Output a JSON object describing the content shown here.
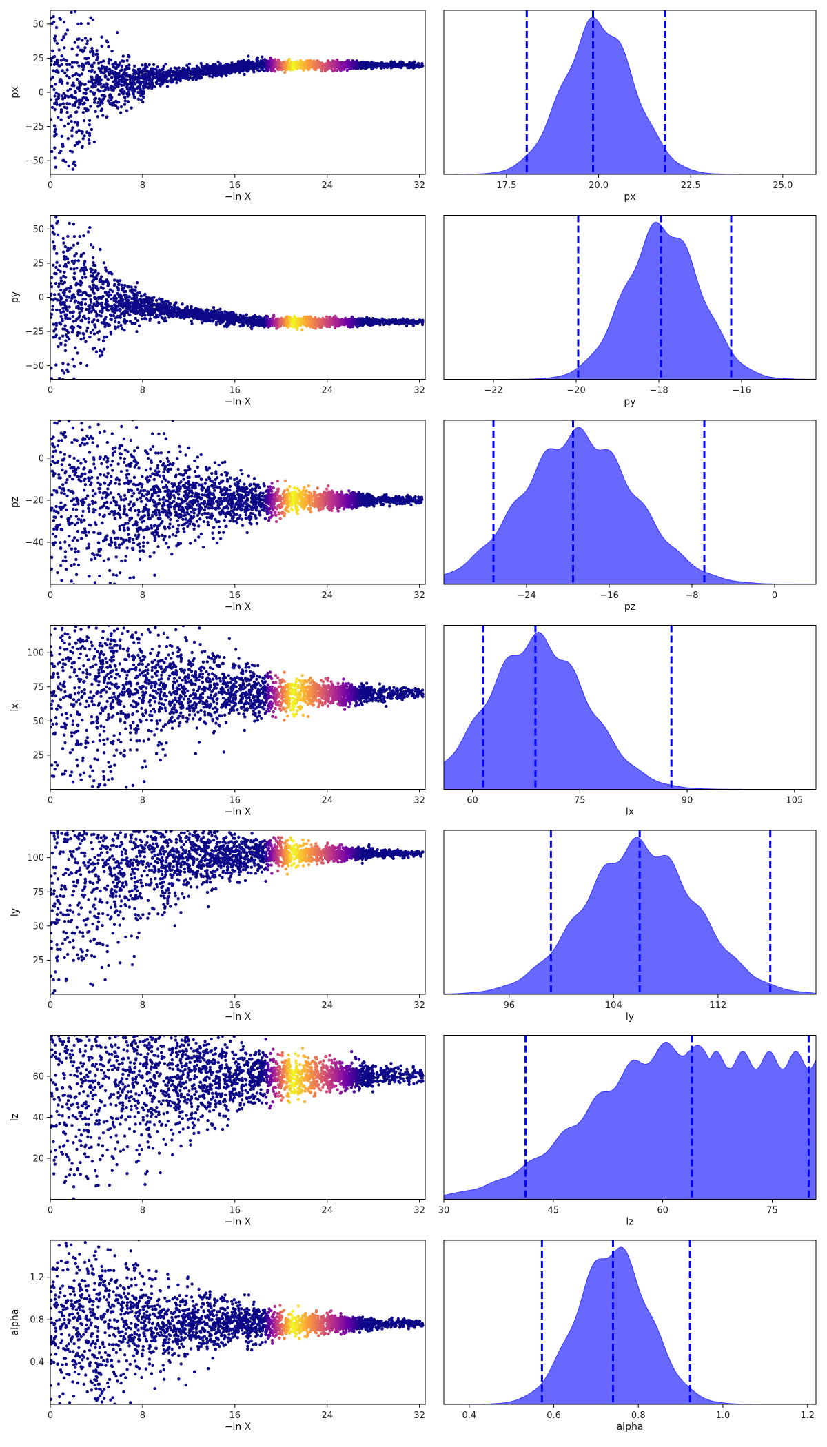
{
  "chart_data": {
    "type": "trace-plot",
    "description_rows": 7,
    "trace_xlabel": "−ln X",
    "trace_xticks": [
      0,
      8,
      16,
      24,
      32
    ],
    "trace_xlim": [
      0,
      32.5
    ],
    "colormap": [
      "#0d0887",
      "#6a00a8",
      "#b12a90",
      "#e16462",
      "#fca636",
      "#f0f921"
    ],
    "kde_fill_color": "#4d4dff",
    "quantile_line_color": "#0000ff",
    "rows": [
      {
        "param": "px",
        "trace": {
          "ylim": [
            -60,
            60
          ],
          "yticks": [
            -50,
            -25,
            0,
            25,
            50
          ],
          "center_start": 2,
          "center_end": 20,
          "spread_start": 60,
          "decay": 0.28,
          "knee": 4
        },
        "posterior": {
          "xlim": [
            15.8,
            25.9
          ],
          "xticks": [
            17.5,
            20.0,
            22.5,
            25.0
          ],
          "xtick_labels": [
            "17.5",
            "20.0",
            "22.5",
            "25.0"
          ],
          "quantiles": [
            18.05,
            19.85,
            21.8
          ],
          "mean": 20.0,
          "sd": 0.95
        }
      },
      {
        "param": "py",
        "trace": {
          "ylim": [
            -60,
            60
          ],
          "yticks": [
            -50,
            -25,
            0,
            25,
            50
          ],
          "center_start": 2,
          "center_end": -18,
          "spread_start": 60,
          "decay": 0.28,
          "knee": 4
        },
        "posterior": {
          "xlim": [
            -23.2,
            -14.2
          ],
          "xticks": [
            -22,
            -20,
            -18,
            -16
          ],
          "xtick_labels": [
            "−22",
            "−20",
            "−18",
            "−16"
          ],
          "quantiles": [
            -19.95,
            -17.95,
            -16.25
          ],
          "mean": -17.9,
          "sd": 0.9
        }
      },
      {
        "param": "pz",
        "trace": {
          "ylim": [
            -60,
            18
          ],
          "yticks": [
            -40,
            -20,
            0
          ],
          "center_start": -20,
          "center_end": -20,
          "spread_start": 45,
          "decay": 0.12,
          "knee": 10
        },
        "posterior": {
          "xlim": [
            -32,
            4
          ],
          "xticks": [
            -24,
            -16,
            -8,
            0
          ],
          "xtick_labels": [
            "−24",
            "−16",
            "−8",
            "0"
          ],
          "quantiles": [
            -27.2,
            -19.5,
            -6.8
          ],
          "mean": -19.0,
          "sd": 5.5
        }
      },
      {
        "param": "lx",
        "trace": {
          "ylim": [
            0,
            120
          ],
          "yticks": [
            25,
            50,
            75,
            100
          ],
          "center_start": 80,
          "center_end": 70,
          "spread_start": 80,
          "decay": 0.11,
          "knee": 8
        },
        "posterior": {
          "xlim": [
            56,
            108
          ],
          "xticks": [
            60,
            75,
            90,
            105
          ],
          "xtick_labels": [
            "60",
            "75",
            "90",
            "105"
          ],
          "quantiles": [
            61.5,
            68.8,
            87.8
          ],
          "mean": 69.0,
          "sd": 7.0
        }
      },
      {
        "param": "ly",
        "trace": {
          "ylim": [
            0,
            120
          ],
          "yticks": [
            25,
            50,
            75,
            100
          ],
          "center_start": 90,
          "center_end": 103,
          "spread_start": 90,
          "decay": 0.13,
          "knee": 6
        },
        "posterior": {
          "xlim": [
            91,
            119.5
          ],
          "xticks": [
            96,
            104,
            112
          ],
          "xtick_labels": [
            "96",
            "104",
            "112"
          ],
          "quantiles": [
            99.2,
            106.0,
            116.0
          ],
          "mean": 106.0,
          "sd": 4.3
        }
      },
      {
        "param": "lz",
        "trace": {
          "ylim": [
            0,
            80
          ],
          "yticks": [
            20,
            40,
            60
          ],
          "center_start": 60,
          "center_end": 60,
          "spread_start": 60,
          "decay": 0.1,
          "knee": 6
        },
        "posterior": {
          "xlim": [
            30,
            81
          ],
          "xticks": [
            30,
            45,
            60,
            75
          ],
          "xtick_labels": [
            "30",
            "45",
            "60",
            "75"
          ],
          "quantiles": [
            41.2,
            64.0,
            80.0
          ],
          "mean": 62.0,
          "sd": 12.0
        }
      },
      {
        "param": "alpha",
        "trace": {
          "ylim": [
            0,
            1.55
          ],
          "yticks": [
            0.4,
            0.8,
            1.2
          ],
          "ytick_labels": [
            "0.4",
            "0.8",
            "1.2"
          ],
          "center_start": 0.78,
          "center_end": 0.76,
          "spread_start": 0.78,
          "decay": 0.12,
          "knee": 12
        },
        "posterior": {
          "xlim": [
            0.34,
            1.22
          ],
          "xticks": [
            0.4,
            0.6,
            0.8,
            1.0,
            1.2
          ],
          "xtick_labels": [
            "0.4",
            "0.6",
            "0.8",
            "1.0",
            "1.2"
          ],
          "quantiles": [
            0.572,
            0.74,
            0.922
          ],
          "mean": 0.74,
          "sd": 0.085
        }
      }
    ]
  }
}
